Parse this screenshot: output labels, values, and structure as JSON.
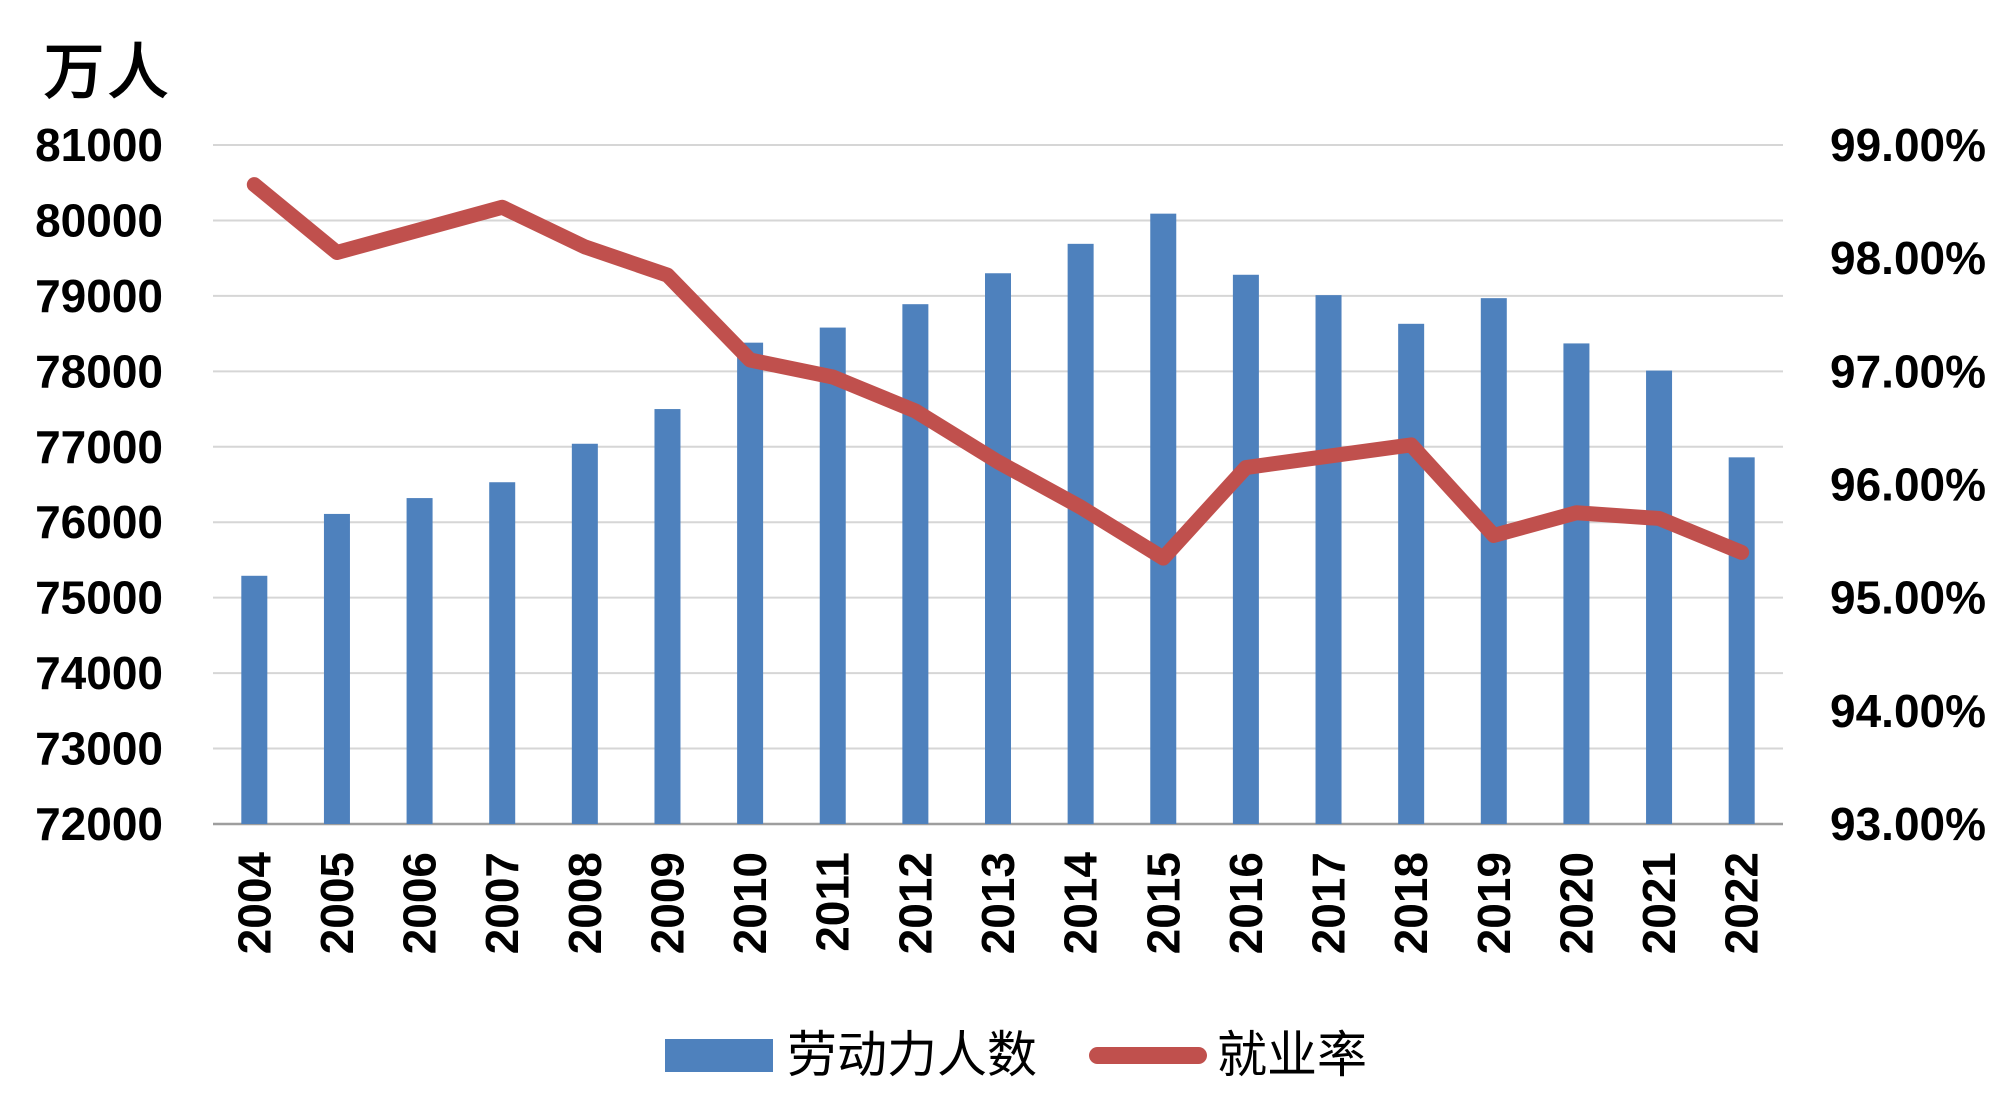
{
  "legend": {
    "series1": "劳动力人数",
    "series2": "就业率"
  },
  "colors": {
    "bar": "#4E81BD",
    "line": "#C0504D",
    "grid": "#D6D6D6",
    "axis": "#9E9E9E",
    "text": "#000000",
    "background": "#FFFFFF"
  },
  "chart_data": {
    "type": "bar+line combo, dual axis",
    "categories": [
      "2004",
      "2005",
      "2006",
      "2007",
      "2008",
      "2009",
      "2010",
      "2011",
      "2012",
      "2013",
      "2014",
      "2015",
      "2016",
      "2017",
      "2018",
      "2019",
      "2020",
      "2021",
      "2022"
    ],
    "series": [
      {
        "name": "劳动力人数",
        "type": "bar",
        "axis": "left",
        "unit": "万人",
        "values": [
          75290,
          76110,
          76320,
          76530,
          77040,
          77500,
          78380,
          78580,
          78890,
          79300,
          79690,
          80090,
          79280,
          79010,
          78630,
          78970,
          78370,
          78010,
          76860
        ]
      },
      {
        "name": "就业率",
        "type": "line",
        "axis": "right",
        "unit": "%",
        "values": [
          98.65,
          98.05,
          98.25,
          98.45,
          98.1,
          97.85,
          97.1,
          96.95,
          96.65,
          96.2,
          95.8,
          95.35,
          96.15,
          96.25,
          96.35,
          95.55,
          95.75,
          95.7,
          95.4
        ]
      }
    ],
    "left_axis": {
      "title": "万人",
      "min": 72000,
      "max": 81000,
      "tick_step": 1000,
      "tick_values": [
        81000,
        80000,
        79000,
        78000,
        77000,
        76000,
        75000,
        74000,
        73000,
        72000
      ],
      "ticks": [
        "81000",
        "80000",
        "79000",
        "78000",
        "77000",
        "76000",
        "75000",
        "74000",
        "73000",
        "72000"
      ]
    },
    "right_axis": {
      "min": 93,
      "max": 99,
      "tick_step": 1,
      "ticks": [
        "99.00%",
        "98.00%",
        "97.00%",
        "96.00%",
        "95.00%",
        "94.00%",
        "93.00%"
      ]
    },
    "grid": true,
    "legend_position": "bottom"
  }
}
